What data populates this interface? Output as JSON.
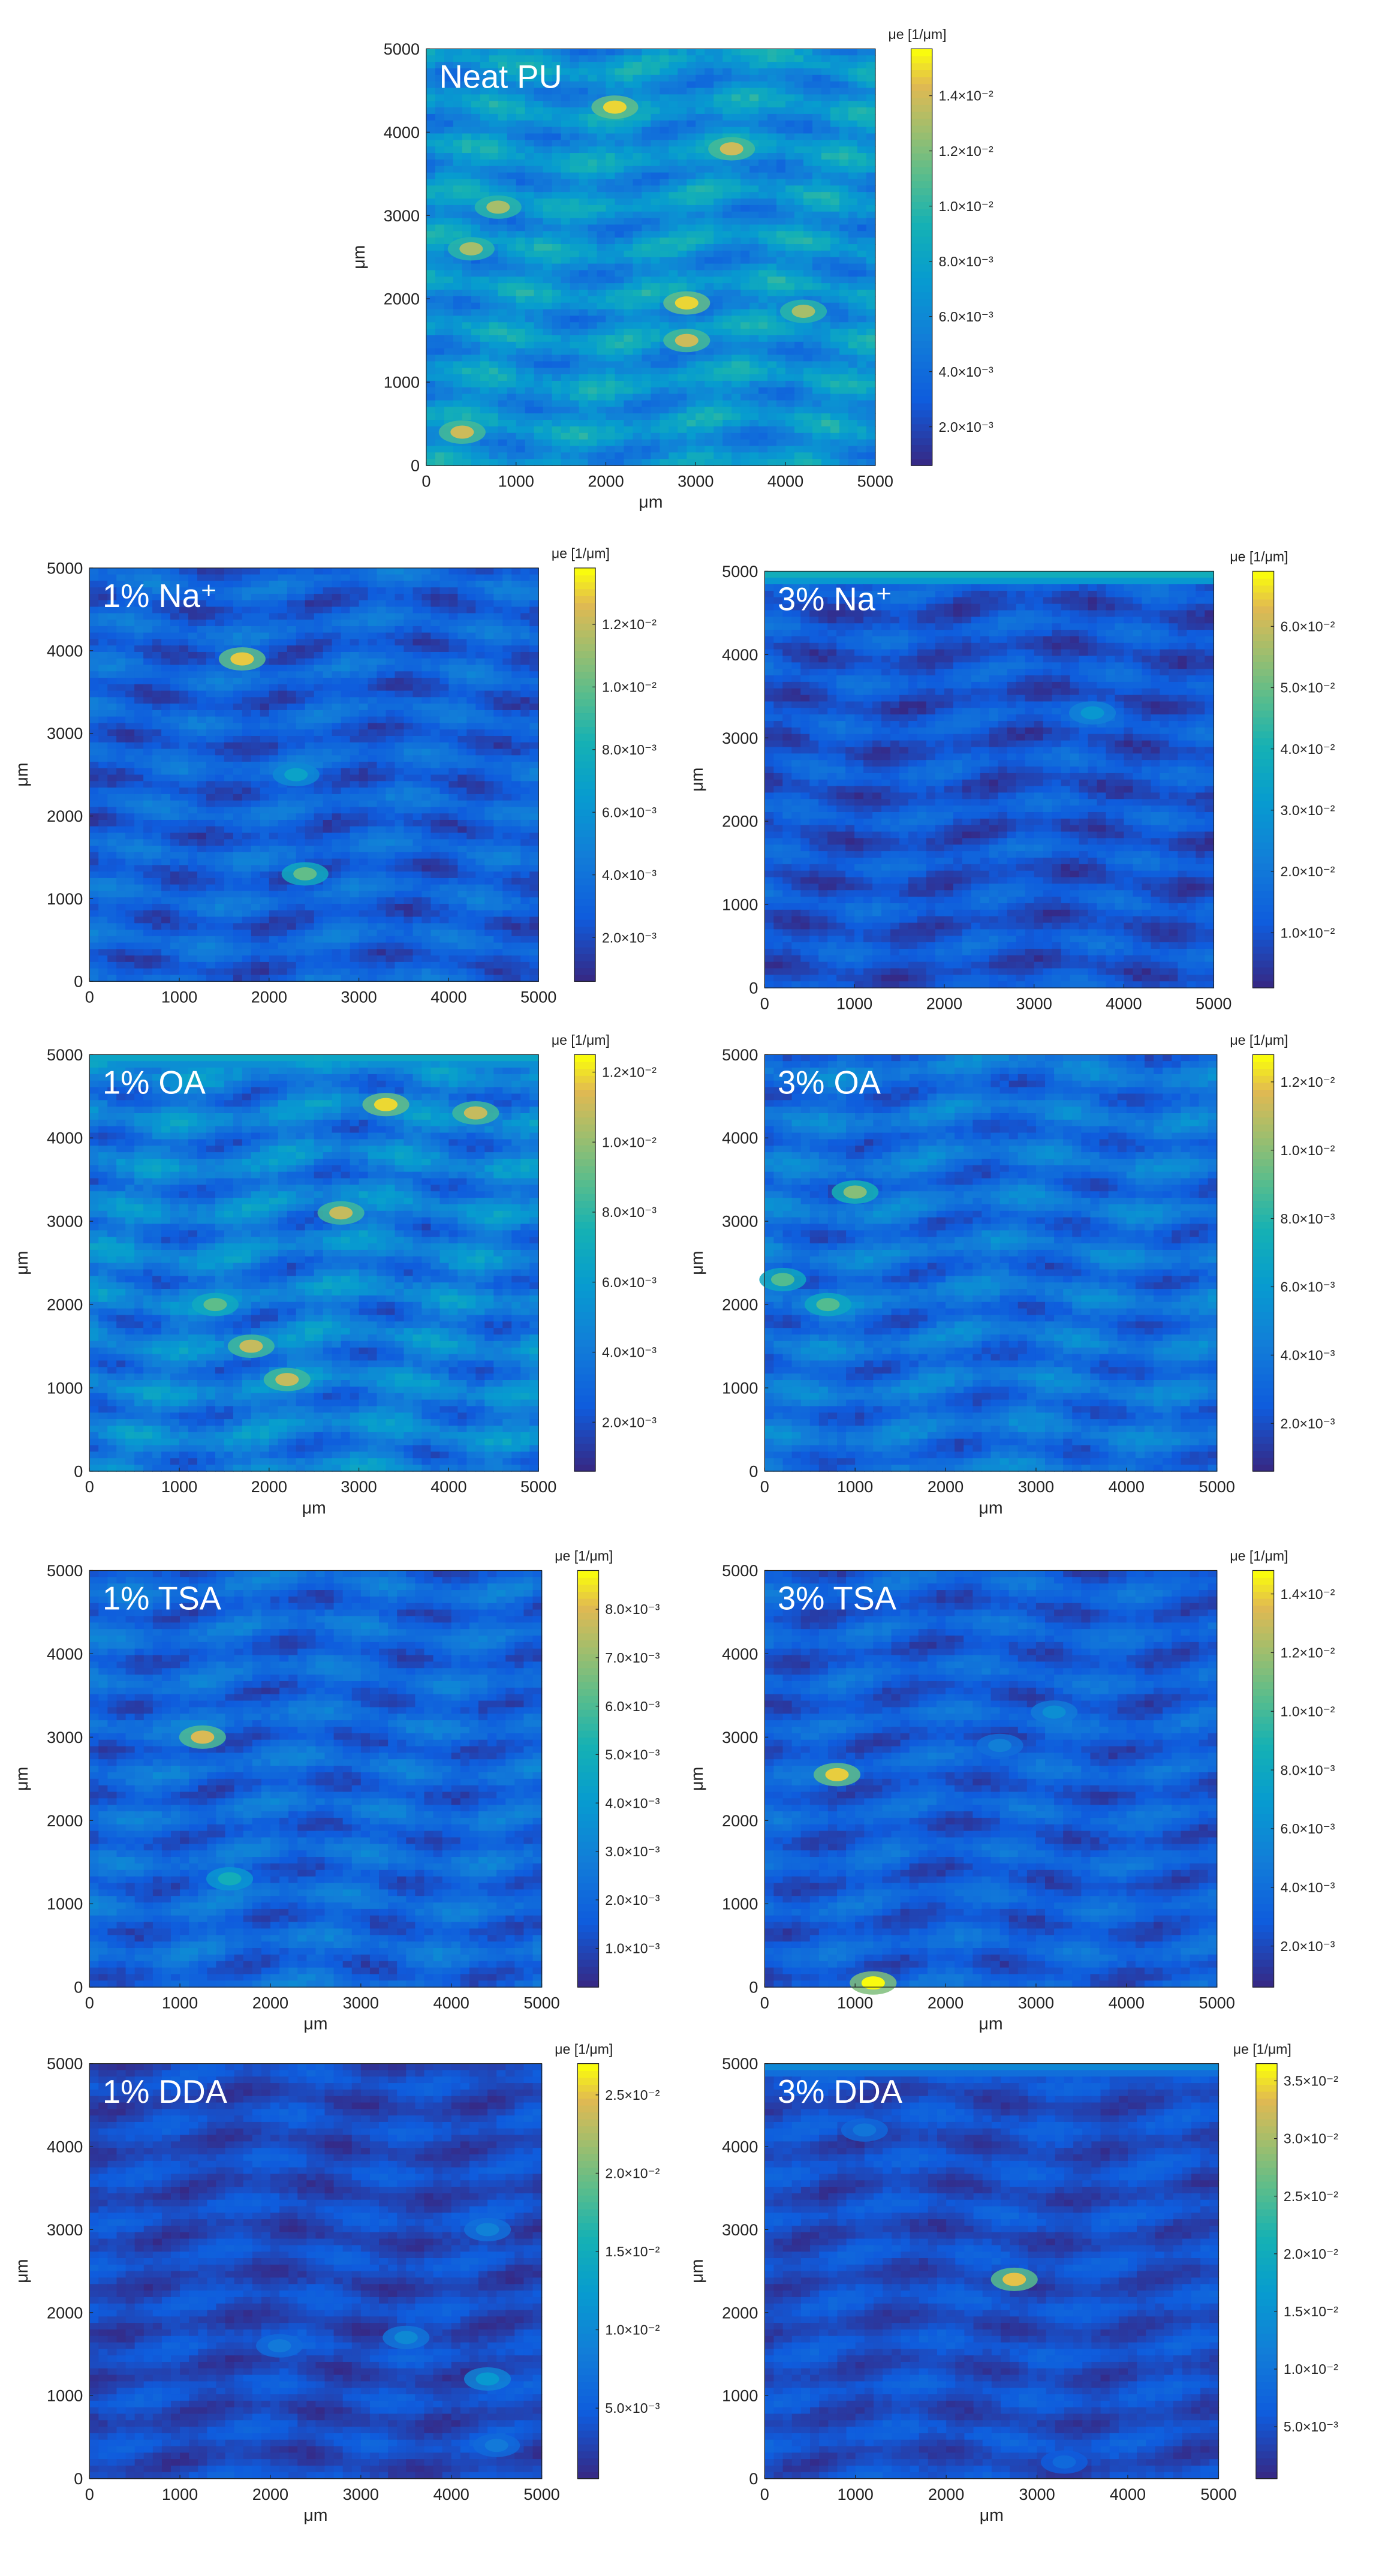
{
  "figure": {
    "colorbar_label": "μe [1/μm]",
    "x_label": "μm",
    "y_label": "μm"
  },
  "chart_data": [
    {
      "type": "heatmap",
      "title": "Neat PU",
      "xlabel": "μm",
      "ylabel": "μm",
      "xlim": [
        0,
        5000
      ],
      "ylim": [
        0,
        5000
      ],
      "x_ticks": [
        0,
        1000,
        2000,
        3000,
        4000,
        5000
      ],
      "y_ticks": [
        0,
        1000,
        2000,
        3000,
        4000,
        5000
      ],
      "colorbar": {
        "label": "μe [1/μm]",
        "min": 0.0006,
        "max": 0.0157,
        "ticks": [
          0.002,
          0.004,
          0.006,
          0.008,
          0.01,
          0.012,
          0.014
        ],
        "tick_labels": [
          "2.0×10⁻³",
          "4.0×10⁻³",
          "6.0×10⁻³",
          "8.0×10⁻³",
          "1.0×10⁻²",
          "1.2×10⁻²",
          "1.4×10⁻²"
        ]
      },
      "colormap": "parula",
      "background_level": 0.4,
      "texture_amplitude": 0.22,
      "hotspots": [
        {
          "x": 400,
          "y": 400,
          "value": 0.014
        },
        {
          "x": 800,
          "y": 3100,
          "value": 0.013
        },
        {
          "x": 2100,
          "y": 4300,
          "value": 0.015
        },
        {
          "x": 2900,
          "y": 1950,
          "value": 0.015
        },
        {
          "x": 3400,
          "y": 3800,
          "value": 0.014
        },
        {
          "x": 2900,
          "y": 1500,
          "value": 0.014
        },
        {
          "x": 500,
          "y": 2600,
          "value": 0.013
        },
        {
          "x": 4200,
          "y": 1850,
          "value": 0.013
        }
      ]
    },
    {
      "type": "heatmap",
      "title": "1% Na⁺",
      "xlabel": "",
      "ylabel": "μm",
      "xlim": [
        0,
        5000
      ],
      "ylim": [
        0,
        5000
      ],
      "x_ticks": [
        0,
        1000,
        2000,
        3000,
        4000,
        5000
      ],
      "y_ticks": [
        0,
        1000,
        2000,
        3000,
        4000,
        5000
      ],
      "colorbar": {
        "label": "μe [1/μm]",
        "min": 0.0006,
        "max": 0.0138,
        "ticks": [
          0.002,
          0.004,
          0.006,
          0.008,
          0.01,
          0.012
        ],
        "tick_labels": [
          "2.0×10⁻³",
          "4.0×10⁻³",
          "6.0×10⁻³",
          "8.0×10⁻³",
          "1.0×10⁻²",
          "1.2×10⁻²"
        ]
      },
      "colormap": "parula",
      "background_level": 0.18,
      "texture_amplitude": 0.16,
      "hotspots": [
        {
          "x": 1700,
          "y": 3900,
          "value": 0.013
        },
        {
          "x": 2400,
          "y": 1300,
          "value": 0.01
        },
        {
          "x": 2300,
          "y": 2500,
          "value": 0.007
        }
      ]
    },
    {
      "type": "heatmap",
      "title": "3% Na⁺",
      "xlabel": "",
      "ylabel": "μm",
      "xlim": [
        0,
        5000
      ],
      "ylim": [
        0,
        5000
      ],
      "x_ticks": [
        0,
        1000,
        2000,
        3000,
        4000,
        5000
      ],
      "y_ticks": [
        0,
        1000,
        2000,
        3000,
        4000,
        5000
      ],
      "colorbar": {
        "label": "μe [1/μm]",
        "min": 0.001,
        "max": 0.069,
        "ticks": [
          0.01,
          0.02,
          0.03,
          0.04,
          0.05,
          0.06
        ],
        "tick_labels": [
          "1.0×10⁻²",
          "2.0×10⁻²",
          "3.0×10⁻²",
          "4.0×10⁻²",
          "5.0×10⁻²",
          "6.0×10⁻²"
        ]
      },
      "colormap": "parula",
      "background_level": 0.14,
      "texture_amplitude": 0.14,
      "top_edge_level": 0.55,
      "hotspots": [
        {
          "x": 3650,
          "y": 3300,
          "value": 0.03
        }
      ]
    },
    {
      "type": "heatmap",
      "title": "1% OA",
      "xlabel": "μm",
      "ylabel": "μm",
      "xlim": [
        0,
        5000
      ],
      "ylim": [
        0,
        5000
      ],
      "x_ticks": [
        0,
        1000,
        2000,
        3000,
        4000,
        5000
      ],
      "y_ticks": [
        0,
        1000,
        2000,
        3000,
        4000,
        5000
      ],
      "colorbar": {
        "label": "μe [1/μm]",
        "min": 0.0006,
        "max": 0.0125,
        "ticks": [
          0.002,
          0.004,
          0.006,
          0.008,
          0.01,
          0.012
        ],
        "tick_labels": [
          "2.0×10⁻³",
          "4.0×10⁻³",
          "6.0×10⁻³",
          "8.0×10⁻³",
          "1.0×10⁻²",
          "1.2×10⁻²"
        ]
      },
      "colormap": "parula",
      "background_level": 0.3,
      "texture_amplitude": 0.22,
      "top_edge_level": 0.5,
      "hotspots": [
        {
          "x": 3300,
          "y": 4400,
          "value": 0.012
        },
        {
          "x": 4300,
          "y": 4300,
          "value": 0.011
        },
        {
          "x": 2800,
          "y": 3100,
          "value": 0.011
        },
        {
          "x": 1800,
          "y": 1500,
          "value": 0.011
        },
        {
          "x": 2200,
          "y": 1100,
          "value": 0.011
        },
        {
          "x": 1400,
          "y": 2000,
          "value": 0.009
        }
      ]
    },
    {
      "type": "heatmap",
      "title": "3% OA",
      "xlabel": "μm",
      "ylabel": "μm",
      "xlim": [
        0,
        5000
      ],
      "ylim": [
        0,
        5000
      ],
      "x_ticks": [
        0,
        1000,
        2000,
        3000,
        4000,
        5000
      ],
      "y_ticks": [
        0,
        1000,
        2000,
        3000,
        4000,
        5000
      ],
      "colorbar": {
        "label": "μe [1/μm]",
        "min": 0.0006,
        "max": 0.0128,
        "ticks": [
          0.002,
          0.004,
          0.006,
          0.008,
          0.01,
          0.012
        ],
        "tick_labels": [
          "2.0×10⁻³",
          "4.0×10⁻³",
          "6.0×10⁻³",
          "8.0×10⁻³",
          "1.0×10⁻²",
          "1.2×10⁻²"
        ]
      },
      "colormap": "parula",
      "background_level": 0.24,
      "texture_amplitude": 0.18,
      "hotspots": [
        {
          "x": 1000,
          "y": 3350,
          "value": 0.01
        },
        {
          "x": 700,
          "y": 2000,
          "value": 0.009
        },
        {
          "x": 200,
          "y": 2300,
          "value": 0.009
        }
      ]
    },
    {
      "type": "heatmap",
      "title": "1% TSA",
      "xlabel": "μm",
      "ylabel": "μm",
      "xlim": [
        0,
        5000
      ],
      "ylim": [
        0,
        5000
      ],
      "x_ticks": [
        0,
        1000,
        2000,
        3000,
        4000,
        5000
      ],
      "y_ticks": [
        0,
        1000,
        2000,
        3000,
        4000,
        5000
      ],
      "colorbar": {
        "label": "μe [1/μm]",
        "min": 0.0002,
        "max": 0.0088,
        "ticks": [
          0.001,
          0.002,
          0.003,
          0.004,
          0.005,
          0.006,
          0.007,
          0.008
        ],
        "tick_labels": [
          "1.0×10⁻³",
          "2.0×10⁻³",
          "3.0×10⁻³",
          "4.0×10⁻³",
          "5.0×10⁻³",
          "6.0×10⁻³",
          "7.0×10⁻³",
          "8.0×10⁻³"
        ]
      },
      "colormap": "parula",
      "background_level": 0.2,
      "texture_amplitude": 0.16,
      "hotspots": [
        {
          "x": 1250,
          "y": 3000,
          "value": 0.008
        },
        {
          "x": 1550,
          "y": 1300,
          "value": 0.005
        }
      ]
    },
    {
      "type": "heatmap",
      "title": "3% TSA",
      "xlabel": "μm",
      "ylabel": "μm",
      "xlim": [
        0,
        5000
      ],
      "ylim": [
        0,
        5000
      ],
      "x_ticks": [
        0,
        1000,
        2000,
        3000,
        4000,
        5000
      ],
      "y_ticks": [
        0,
        1000,
        2000,
        3000,
        4000,
        5000
      ],
      "colorbar": {
        "label": "μe [1/μm]",
        "min": 0.0006,
        "max": 0.0148,
        "ticks": [
          0.002,
          0.004,
          0.006,
          0.008,
          0.01,
          0.012,
          0.014
        ],
        "tick_labels": [
          "2.0×10⁻³",
          "4.0×10⁻³",
          "6.0×10⁻³",
          "8.0×10⁻³",
          "1.0×10⁻²",
          "1.2×10⁻²",
          "1.4×10⁻²"
        ]
      },
      "colormap": "parula",
      "background_level": 0.17,
      "texture_amplitude": 0.14,
      "hotspots": [
        {
          "x": 800,
          "y": 2550,
          "value": 0.014
        },
        {
          "x": 1200,
          "y": 50,
          "value": 0.015
        },
        {
          "x": 3200,
          "y": 3300,
          "value": 0.006
        },
        {
          "x": 2600,
          "y": 2900,
          "value": 0.005
        }
      ]
    },
    {
      "type": "heatmap",
      "title": "1% DDA",
      "xlabel": "μm",
      "ylabel": "μm",
      "xlim": [
        0,
        5000
      ],
      "ylim": [
        0,
        5000
      ],
      "x_ticks": [
        0,
        1000,
        2000,
        3000,
        4000,
        5000
      ],
      "y_ticks": [
        0,
        1000,
        2000,
        3000,
        4000,
        5000
      ],
      "colorbar": {
        "label": "μe [1/μm]",
        "min": 0.0005,
        "max": 0.027,
        "ticks": [
          0.005,
          0.01,
          0.015,
          0.02,
          0.025
        ],
        "tick_labels": [
          "5.0×10⁻³",
          "1.0×10⁻²",
          "1.5×10⁻²",
          "2.0×10⁻²",
          "2.5×10⁻²"
        ]
      },
      "colormap": "parula",
      "background_level": 0.1,
      "texture_amplitude": 0.1,
      "hotspots": [
        {
          "x": 4400,
          "y": 1200,
          "value": 0.012
        },
        {
          "x": 3500,
          "y": 1700,
          "value": 0.01
        },
        {
          "x": 4400,
          "y": 3000,
          "value": 0.009
        },
        {
          "x": 2100,
          "y": 1600,
          "value": 0.008
        },
        {
          "x": 4500,
          "y": 400,
          "value": 0.008
        }
      ]
    },
    {
      "type": "heatmap",
      "title": "3% DDA",
      "xlabel": "μm",
      "ylabel": "μm",
      "xlim": [
        0,
        5000
      ],
      "ylim": [
        0,
        5000
      ],
      "x_ticks": [
        0,
        1000,
        2000,
        3000,
        4000,
        5000
      ],
      "y_ticks": [
        0,
        1000,
        2000,
        3000,
        4000,
        5000
      ],
      "colorbar": {
        "label": "μe [1/μm]",
        "min": 0.0005,
        "max": 0.0365,
        "ticks": [
          0.005,
          0.01,
          0.015,
          0.02,
          0.025,
          0.03,
          0.035
        ],
        "tick_labels": [
          "5.0×10⁻³",
          "1.0×10⁻²",
          "1.5×10⁻²",
          "2.0×10⁻²",
          "2.5×10⁻²",
          "3.0×10⁻²",
          "3.5×10⁻²"
        ]
      },
      "colormap": "parula",
      "background_level": 0.11,
      "texture_amplitude": 0.1,
      "top_edge_level": 0.35,
      "hotspots": [
        {
          "x": 2750,
          "y": 2400,
          "value": 0.034
        },
        {
          "x": 1100,
          "y": 4200,
          "value": 0.01
        },
        {
          "x": 3300,
          "y": 200,
          "value": 0.008
        }
      ]
    }
  ]
}
